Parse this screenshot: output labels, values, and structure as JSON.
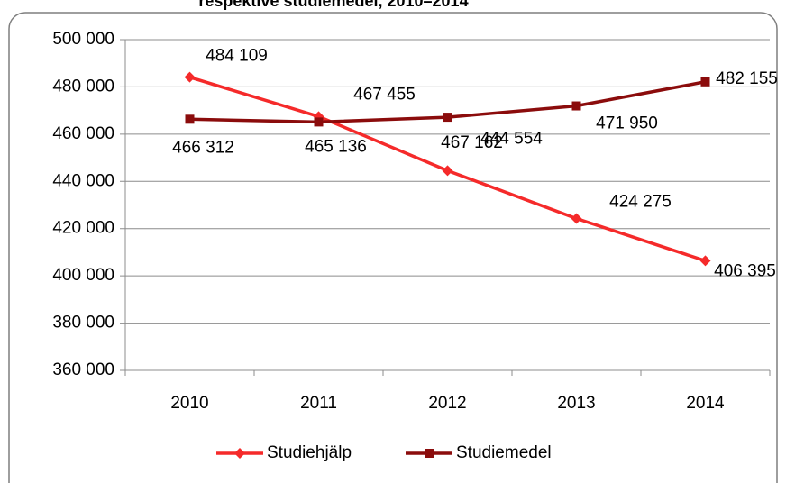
{
  "chart_data": {
    "type": "line",
    "title": "respektive studiemedel, 2010–2014",
    "categories": [
      "2010",
      "2011",
      "2012",
      "2013",
      "2014"
    ],
    "series": [
      {
        "name": "Studiehjälp",
        "color": "#f52a2a",
        "marker": "diamond",
        "values": [
          484109,
          467455,
          444554,
          424275,
          406395
        ],
        "value_labels": [
          "484 109",
          "467 455",
          "444 554",
          "424 275",
          "406 395"
        ]
      },
      {
        "name": "Studiemedel",
        "color": "#8b0c0c",
        "marker": "square",
        "values": [
          466312,
          465136,
          467162,
          471950,
          482155
        ],
        "value_labels": [
          "466 312",
          "465 136",
          "467 162",
          "471 950",
          "482 155"
        ]
      }
    ],
    "ylim": [
      360000,
      500000
    ],
    "yticks": [
      {
        "value": 360000,
        "label": "360 000"
      },
      {
        "value": 380000,
        "label": "380 000"
      },
      {
        "value": 400000,
        "label": "400 000"
      },
      {
        "value": 420000,
        "label": "420 000"
      },
      {
        "value": 440000,
        "label": "440 000"
      },
      {
        "value": 460000,
        "label": "460 000"
      },
      {
        "value": 480000,
        "label": "480 000"
      },
      {
        "value": 500000,
        "label": "500 000"
      }
    ],
    "grid": true,
    "legend": "bottom"
  }
}
